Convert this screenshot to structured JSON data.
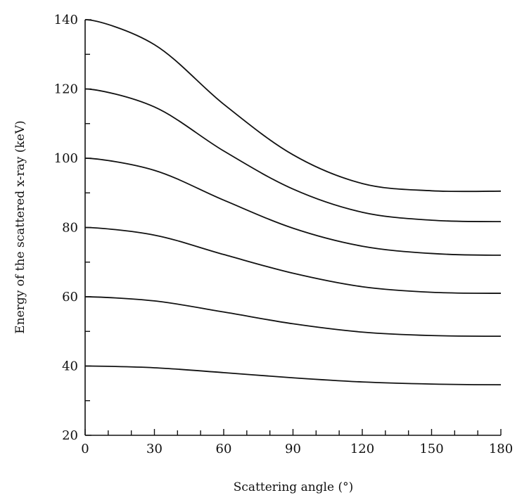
{
  "chart_data": {
    "type": "line",
    "title": "",
    "xlabel": "Scattering angle (°)",
    "ylabel": "Energy of the scattered x-ray (keV)",
    "xlim": [
      0,
      180
    ],
    "ylim": [
      20,
      140
    ],
    "x_ticks": [
      0,
      30,
      60,
      90,
      120,
      150,
      180
    ],
    "x_tick_labels": [
      "0",
      "30",
      "60",
      "90",
      "120",
      "150",
      "180"
    ],
    "x_minor_step": 10,
    "y_ticks": [
      20,
      40,
      60,
      80,
      100,
      120,
      140
    ],
    "y_tick_labels": [
      "20",
      "40",
      "60",
      "80",
      "100",
      "120",
      "140"
    ],
    "y_minor_step": 10,
    "grid": false,
    "legend": "none",
    "line_color": "#111111",
    "x": [
      0,
      30,
      60,
      90,
      120,
      150,
      180
    ],
    "series": [
      {
        "values": [
          140,
          132.8,
          115.6,
          101.0,
          92.7,
          90.6,
          90.5
        ]
      },
      {
        "values": [
          120,
          114.8,
          102.1,
          91.1,
          84.4,
          82.1,
          81.7
        ]
      },
      {
        "values": [
          100,
          96.5,
          87.9,
          79.8,
          74.6,
          72.5,
          72.0
        ]
      },
      {
        "values": [
          80,
          77.8,
          72.2,
          66.8,
          62.9,
          61.3,
          61.0
        ]
      },
      {
        "values": [
          60,
          58.8,
          55.6,
          52.2,
          49.8,
          48.8,
          48.6
        ]
      },
      {
        "values": [
          40,
          39.5,
          38.1,
          36.6,
          35.4,
          34.8,
          34.6
        ]
      }
    ]
  }
}
